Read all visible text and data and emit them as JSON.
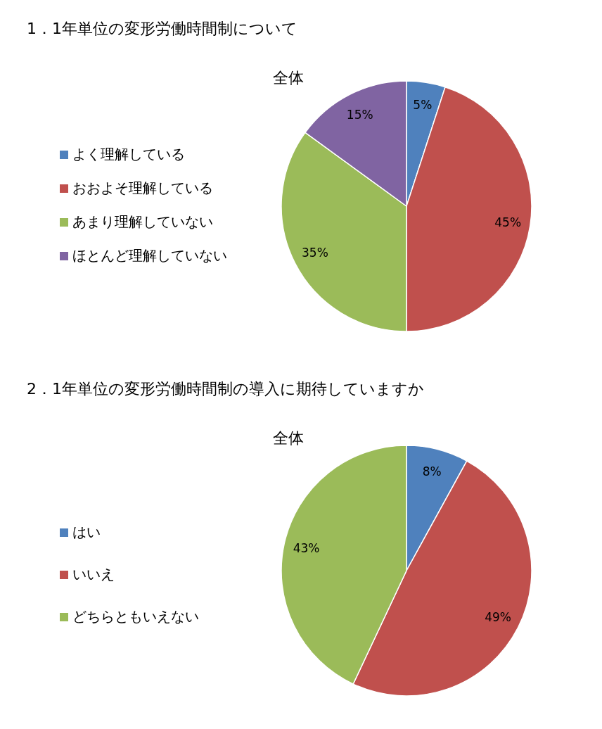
{
  "chart_data": [
    {
      "type": "pie",
      "title": "1．1年単位の変形労働時間制について",
      "subtitle": "全体",
      "categories": [
        "よく理解している",
        "おおよそ理解している",
        "あまり理解していない",
        "ほとんど理解していない"
      ],
      "values": [
        5,
        45,
        35,
        15
      ],
      "value_labels": [
        "5%",
        "45%",
        "35%",
        "15%"
      ],
      "colors": [
        "#4f81bd",
        "#c0504d",
        "#9bbb59",
        "#8064a2"
      ],
      "legend": "left"
    },
    {
      "type": "pie",
      "title": "2．1年単位の変形労働時間制の導入に期待していますか",
      "subtitle": "全体",
      "categories": [
        "はい",
        "いいえ",
        "どちらともいえない"
      ],
      "values": [
        8,
        49,
        43
      ],
      "value_labels": [
        "8%",
        "49%",
        "43%"
      ],
      "colors": [
        "#4f81bd",
        "#c0504d",
        "#9bbb59"
      ],
      "legend": "left"
    }
  ]
}
